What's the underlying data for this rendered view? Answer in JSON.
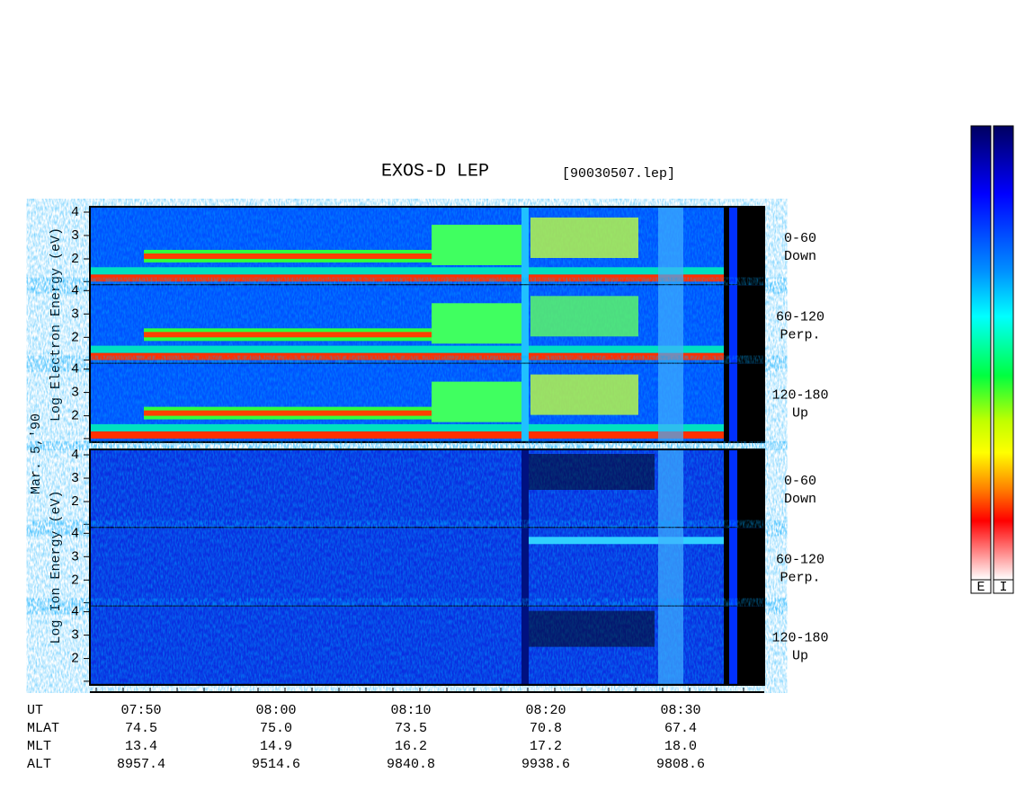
{
  "header": {
    "title": "EXOS-D LEP",
    "file": "[90030507.lep]"
  },
  "date": "Mar. 5,'90",
  "groups": [
    {
      "axis_label": "Log  Electron  Energy (eV)",
      "panels": [
        {
          "pitch": "0-60",
          "direction": "Down",
          "ticks": [
            "4",
            "3",
            "2"
          ]
        },
        {
          "pitch": "60-120",
          "direction": "Perp.",
          "ticks": [
            "4",
            "3",
            "2"
          ]
        },
        {
          "pitch": "120-180",
          "direction": "Up",
          "ticks": [
            "4",
            "3",
            "2"
          ]
        }
      ]
    },
    {
      "axis_label": "Log  Ion  Energy (eV)",
      "panels": [
        {
          "pitch": "0-60",
          "direction": "Down",
          "ticks": [
            "4",
            "3",
            "2"
          ]
        },
        {
          "pitch": "60-120",
          "direction": "Perp.",
          "ticks": [
            "4",
            "3",
            "2"
          ]
        },
        {
          "pitch": "120-180",
          "direction": "Up",
          "ticks": [
            "4",
            "3",
            "2"
          ]
        }
      ]
    }
  ],
  "orbit_table": {
    "rows": [
      {
        "label": "UT",
        "values": [
          "07:50",
          "08:00",
          "08:10",
          "08:20",
          "08:30"
        ]
      },
      {
        "label": "MLAT",
        "values": [
          "74.5",
          "75.0",
          "73.5",
          "70.8",
          "67.4"
        ]
      },
      {
        "label": "MLT",
        "values": [
          "13.4",
          "14.9",
          "16.2",
          "17.2",
          "18.0"
        ]
      },
      {
        "label": "ALT",
        "values": [
          "8957.4",
          "9514.6",
          "9840.8",
          "9938.6",
          "9808.6"
        ]
      }
    ]
  },
  "colorbars": [
    "E",
    "I"
  ]
}
